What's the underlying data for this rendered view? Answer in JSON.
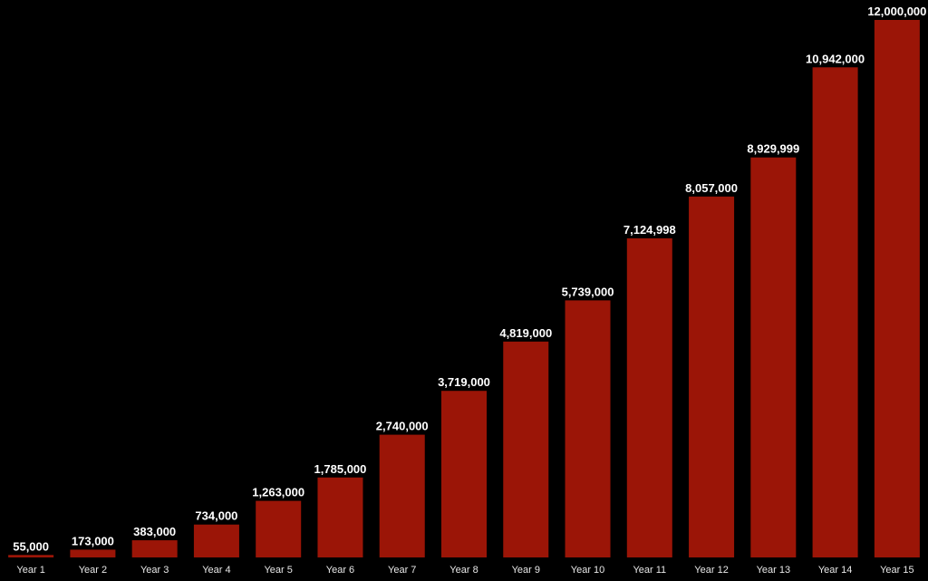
{
  "chart_data": {
    "type": "bar",
    "title": "",
    "xlabel": "",
    "ylabel": "",
    "categories": [
      "Year 1",
      "Year 2",
      "Year 3",
      "Year 4",
      "Year 5",
      "Year 6",
      "Year 7",
      "Year 8",
      "Year 9",
      "Year 10",
      "Year 11",
      "Year 12",
      "Year 13",
      "Year 14",
      "Year 15"
    ],
    "values": [
      55000,
      173000,
      383000,
      734000,
      1263000,
      1785000,
      2740000,
      3719000,
      4819000,
      5739000,
      7124998,
      8057000,
      8929999,
      10942000,
      12000000
    ],
    "value_labels": [
      "55,000",
      "173,000",
      "383,000",
      "734,000",
      "1,263,000",
      "1,785,000",
      "2,740,000",
      "3,719,000",
      "4,819,000",
      "5,739,000",
      "7,124,998",
      "8,057,000",
      "8,929,999",
      "10,942,000",
      "12,000,000"
    ],
    "ylim": [
      0,
      12000000
    ],
    "grid": false,
    "legend": "none",
    "colors": {
      "background": "#000000",
      "bar": "#9b1507",
      "value_label": "#ffffff",
      "tick_label": "#e8e8e8"
    }
  }
}
